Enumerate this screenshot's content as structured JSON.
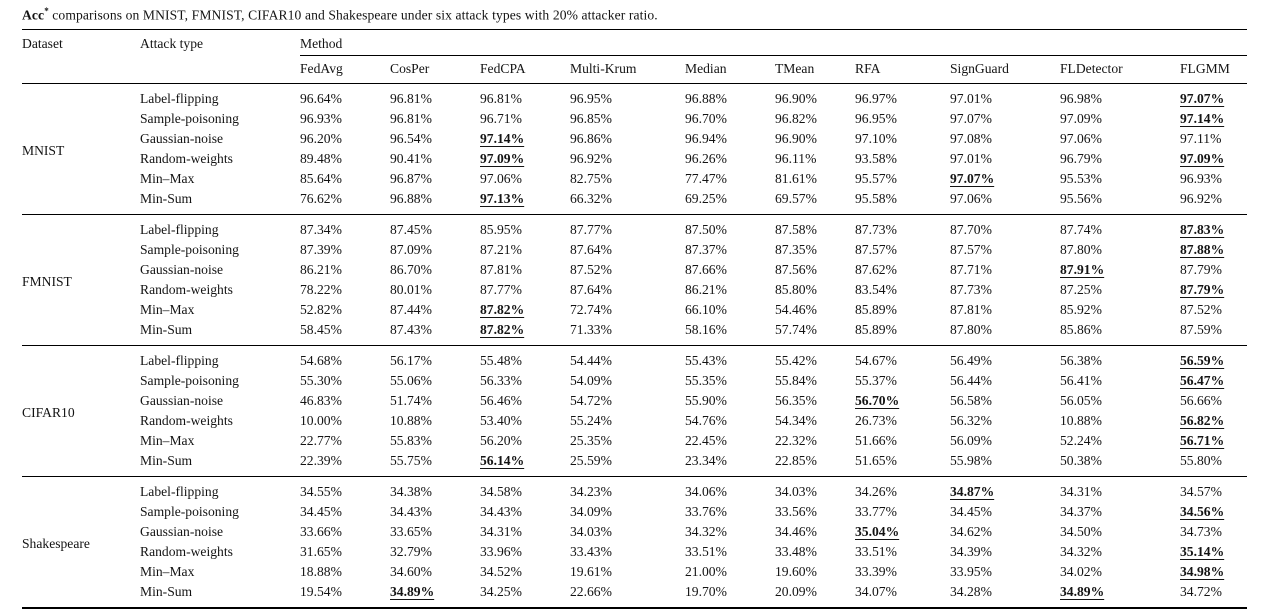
{
  "caption": {
    "lead": "Acc",
    "sup": "*",
    "rest": " comparisons on MNIST, FMNIST, CIFAR10 and Shakespeare under six attack types with 20% attacker ratio."
  },
  "table": {
    "col1_header": "Dataset",
    "col2_header": "Attack type",
    "method_header": "Method",
    "methods": [
      "FedAvg",
      "CosPer",
      "FedCPA",
      "Multi-Krum",
      "Median",
      "TMean",
      "RFA",
      "SignGuard",
      "FLDetector",
      "FLGMM"
    ],
    "groups": [
      {
        "dataset": "MNIST",
        "rows": [
          {
            "attack": "Label-flipping",
            "values": [
              "96.64%",
              "96.81%",
              "96.81%",
              "96.95%",
              "96.88%",
              "96.90%",
              "96.97%",
              "97.01%",
              "96.98%",
              "97.07%"
            ],
            "best": [
              9
            ]
          },
          {
            "attack": "Sample-poisoning",
            "values": [
              "96.93%",
              "96.81%",
              "96.71%",
              "96.85%",
              "96.70%",
              "96.82%",
              "96.95%",
              "97.07%",
              "97.09%",
              "97.14%"
            ],
            "best": [
              9
            ]
          },
          {
            "attack": "Gaussian-noise",
            "values": [
              "96.20%",
              "96.54%",
              "97.14%",
              "96.86%",
              "96.94%",
              "96.90%",
              "97.10%",
              "97.08%",
              "97.06%",
              "97.11%"
            ],
            "best": [
              2
            ]
          },
          {
            "attack": "Random-weights",
            "values": [
              "89.48%",
              "90.41%",
              "97.09%",
              "96.92%",
              "96.26%",
              "96.11%",
              "93.58%",
              "97.01%",
              "96.79%",
              "97.09%"
            ],
            "best": [
              2,
              9
            ]
          },
          {
            "attack": "Min–Max",
            "values": [
              "85.64%",
              "96.87%",
              "97.06%",
              "82.75%",
              "77.47%",
              "81.61%",
              "95.57%",
              "97.07%",
              "95.53%",
              "96.93%"
            ],
            "best": [
              7
            ]
          },
          {
            "attack": "Min-Sum",
            "values": [
              "76.62%",
              "96.88%",
              "97.13%",
              "66.32%",
              "69.25%",
              "69.57%",
              "95.58%",
              "97.06%",
              "95.56%",
              "96.92%"
            ],
            "best": [
              2
            ]
          }
        ]
      },
      {
        "dataset": "FMNIST",
        "rows": [
          {
            "attack": "Label-flipping",
            "values": [
              "87.34%",
              "87.45%",
              "85.95%",
              "87.77%",
              "87.50%",
              "87.58%",
              "87.73%",
              "87.70%",
              "87.74%",
              "87.83%"
            ],
            "best": [
              9
            ]
          },
          {
            "attack": "Sample-poisoning",
            "values": [
              "87.39%",
              "87.09%",
              "87.21%",
              "87.64%",
              "87.37%",
              "87.35%",
              "87.57%",
              "87.57%",
              "87.80%",
              "87.88%"
            ],
            "best": [
              9
            ]
          },
          {
            "attack": "Gaussian-noise",
            "values": [
              "86.21%",
              "86.70%",
              "87.81%",
              "87.52%",
              "87.66%",
              "87.56%",
              "87.62%",
              "87.71%",
              "87.91%",
              "87.79%"
            ],
            "best": [
              8
            ]
          },
          {
            "attack": "Random-weights",
            "values": [
              "78.22%",
              "80.01%",
              "87.77%",
              "87.64%",
              "86.21%",
              "85.80%",
              "83.54%",
              "87.73%",
              "87.25%",
              "87.79%"
            ],
            "best": [
              9
            ]
          },
          {
            "attack": "Min–Max",
            "values": [
              "52.82%",
              "87.44%",
              "87.82%",
              "72.74%",
              "66.10%",
              "54.46%",
              "85.89%",
              "87.81%",
              "85.92%",
              "87.52%"
            ],
            "best": [
              2
            ]
          },
          {
            "attack": "Min-Sum",
            "values": [
              "58.45%",
              "87.43%",
              "87.82%",
              "71.33%",
              "58.16%",
              "57.74%",
              "85.89%",
              "87.80%",
              "85.86%",
              "87.59%"
            ],
            "best": [
              2
            ]
          }
        ]
      },
      {
        "dataset": "CIFAR10",
        "rows": [
          {
            "attack": "Label-flipping",
            "values": [
              "54.68%",
              "56.17%",
              "55.48%",
              "54.44%",
              "55.43%",
              "55.42%",
              "54.67%",
              "56.49%",
              "56.38%",
              "56.59%"
            ],
            "best": [
              9
            ]
          },
          {
            "attack": "Sample-poisoning",
            "values": [
              "55.30%",
              "55.06%",
              "56.33%",
              "54.09%",
              "55.35%",
              "55.84%",
              "55.37%",
              "56.44%",
              "56.41%",
              "56.47%"
            ],
            "best": [
              9
            ]
          },
          {
            "attack": "Gaussian-noise",
            "values": [
              "46.83%",
              "51.74%",
              "56.46%",
              "54.72%",
              "55.90%",
              "56.35%",
              "56.70%",
              "56.58%",
              "56.05%",
              "56.66%"
            ],
            "best": [
              6
            ]
          },
          {
            "attack": "Random-weights",
            "values": [
              "10.00%",
              "10.88%",
              "53.40%",
              "55.24%",
              "54.76%",
              "54.34%",
              "26.73%",
              "56.32%",
              "10.88%",
              "56.82%"
            ],
            "best": [
              9
            ]
          },
          {
            "attack": "Min–Max",
            "values": [
              "22.77%",
              "55.83%",
              "56.20%",
              "25.35%",
              "22.45%",
              "22.32%",
              "51.66%",
              "56.09%",
              "52.24%",
              "56.71%"
            ],
            "best": [
              9
            ]
          },
          {
            "attack": "Min-Sum",
            "values": [
              "22.39%",
              "55.75%",
              "56.14%",
              "25.59%",
              "23.34%",
              "22.85%",
              "51.65%",
              "55.98%",
              "50.38%",
              "55.80%"
            ],
            "best": [
              2
            ]
          }
        ]
      },
      {
        "dataset": "Shakespeare",
        "rows": [
          {
            "attack": "Label-flipping",
            "values": [
              "34.55%",
              "34.38%",
              "34.58%",
              "34.23%",
              "34.06%",
              "34.03%",
              "34.26%",
              "34.87%",
              "34.31%",
              "34.57%"
            ],
            "best": [
              7
            ]
          },
          {
            "attack": "Sample-poisoning",
            "values": [
              "34.45%",
              "34.43%",
              "34.43%",
              "34.09%",
              "33.76%",
              "33.56%",
              "33.77%",
              "34.45%",
              "34.37%",
              "34.56%"
            ],
            "best": [
              9
            ]
          },
          {
            "attack": "Gaussian-noise",
            "values": [
              "33.66%",
              "33.65%",
              "34.31%",
              "34.03%",
              "34.32%",
              "34.46%",
              "35.04%",
              "34.62%",
              "34.50%",
              "34.73%"
            ],
            "best": [
              6
            ]
          },
          {
            "attack": "Random-weights",
            "values": [
              "31.65%",
              "32.79%",
              "33.96%",
              "33.43%",
              "33.51%",
              "33.48%",
              "33.51%",
              "34.39%",
              "34.32%",
              "35.14%"
            ],
            "best": [
              9
            ]
          },
          {
            "attack": "Min–Max",
            "values": [
              "18.88%",
              "34.60%",
              "34.52%",
              "19.61%",
              "21.00%",
              "19.60%",
              "33.39%",
              "33.95%",
              "34.02%",
              "34.98%"
            ],
            "best": [
              9
            ]
          },
          {
            "attack": "Min-Sum",
            "values": [
              "19.54%",
              "34.89%",
              "34.25%",
              "22.66%",
              "19.70%",
              "20.09%",
              "34.07%",
              "34.28%",
              "34.89%",
              "34.72%"
            ],
            "best": [
              1,
              8
            ]
          }
        ]
      }
    ]
  }
}
